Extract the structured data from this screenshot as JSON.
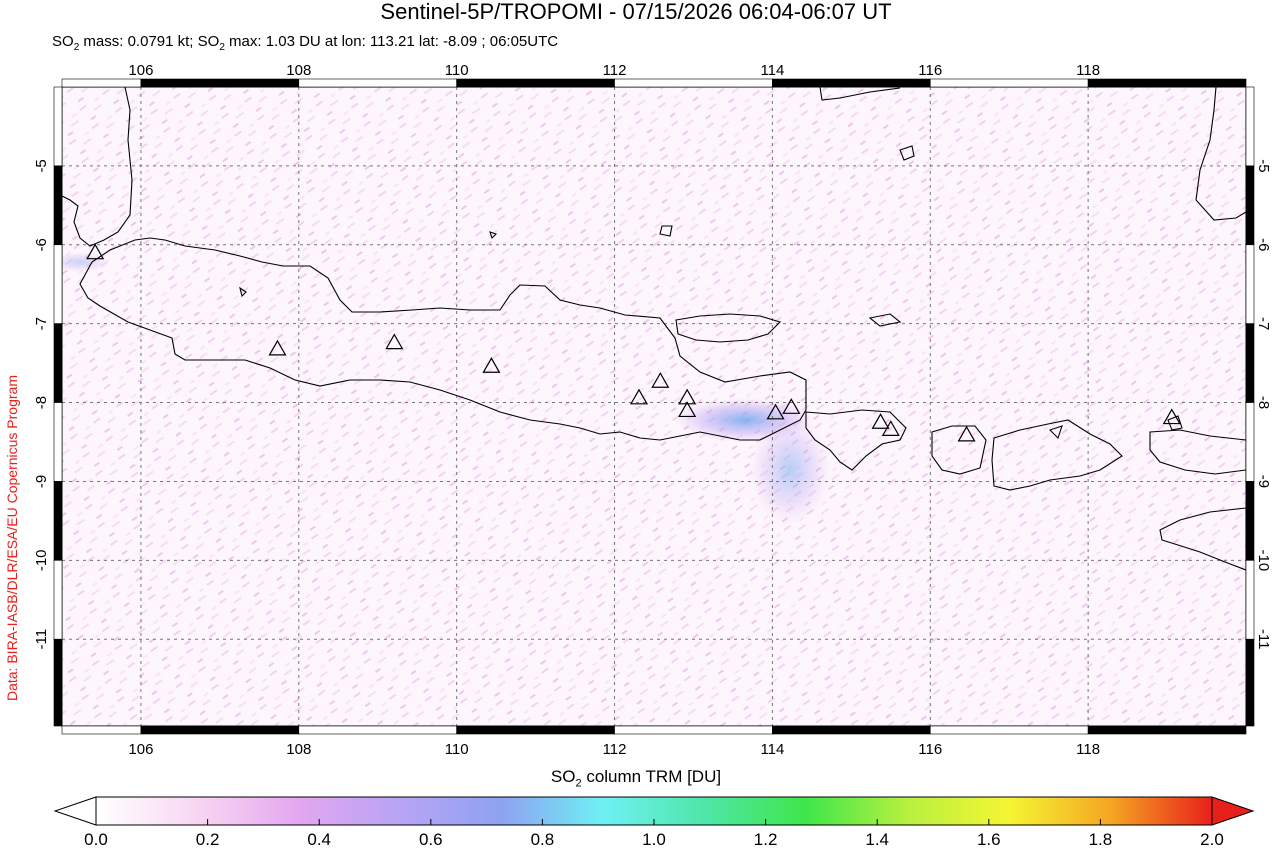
{
  "header": {
    "title": "Sentinel-5P/TROPOMI - 07/15/2026 06:04-06:07 UT",
    "subtitle_parts": [
      "SO",
      "2",
      " mass: 0.0791 kt; SO",
      "2",
      " max: 1.03 DU at lon: 113.21 lat: -8.09 ; 06:05UTC"
    ]
  },
  "credit": "Data: BIRA-IASB/DLR/ESA/EU Copernicus Program",
  "map": {
    "lon_range": [
      105.0,
      120.0
    ],
    "lat_range": [
      -12.1,
      -4.0
    ],
    "lon_ticks": [
      "106",
      "108",
      "110",
      "112",
      "114",
      "116",
      "118"
    ],
    "lon_tick_values": [
      106,
      108,
      110,
      112,
      114,
      116,
      118
    ],
    "lat_ticks": [
      "-5",
      "-6",
      "-7",
      "-8",
      "-9",
      "-10",
      "-11"
    ],
    "lat_tick_values": [
      -5,
      -6,
      -7,
      -8,
      -9,
      -10,
      -11
    ],
    "volcanoes": [
      {
        "lon": 105.42,
        "lat": -6.1
      },
      {
        "lon": 107.73,
        "lat": -7.32
      },
      {
        "lon": 109.21,
        "lat": -7.24
      },
      {
        "lon": 110.44,
        "lat": -7.54
      },
      {
        "lon": 112.31,
        "lat": -7.94
      },
      {
        "lon": 112.58,
        "lat": -7.73
      },
      {
        "lon": 112.92,
        "lat": -7.94
      },
      {
        "lon": 112.92,
        "lat": -8.1
      },
      {
        "lon": 114.04,
        "lat": -8.13
      },
      {
        "lon": 114.24,
        "lat": -8.06
      },
      {
        "lon": 115.37,
        "lat": -8.25
      },
      {
        "lon": 115.5,
        "lat": -8.34
      },
      {
        "lon": 116.46,
        "lat": -8.41
      },
      {
        "lon": 119.06,
        "lat": -8.19
      }
    ]
  },
  "colorbar": {
    "title_parts": [
      "SO",
      "2",
      " column TRM [DU]"
    ],
    "labels": [
      "0.0",
      "0.2",
      "0.4",
      "0.6",
      "0.8",
      "1.0",
      "1.2",
      "1.4",
      "1.6",
      "1.8",
      "2.0"
    ],
    "range": [
      0.0,
      2.0
    ],
    "stops": [
      "#ffffff",
      "#f8d6f2",
      "#e3a6f0",
      "#b8a4f4",
      "#8ea2f2",
      "#6ff0f4",
      "#4ee6a8",
      "#3fe64a",
      "#b8f040",
      "#f5f533",
      "#f5a623",
      "#e8201c"
    ]
  },
  "colors": {
    "so2_plume": "#7fb8ef",
    "background_noise": "#f6d9f3",
    "coastline": "#000000"
  }
}
